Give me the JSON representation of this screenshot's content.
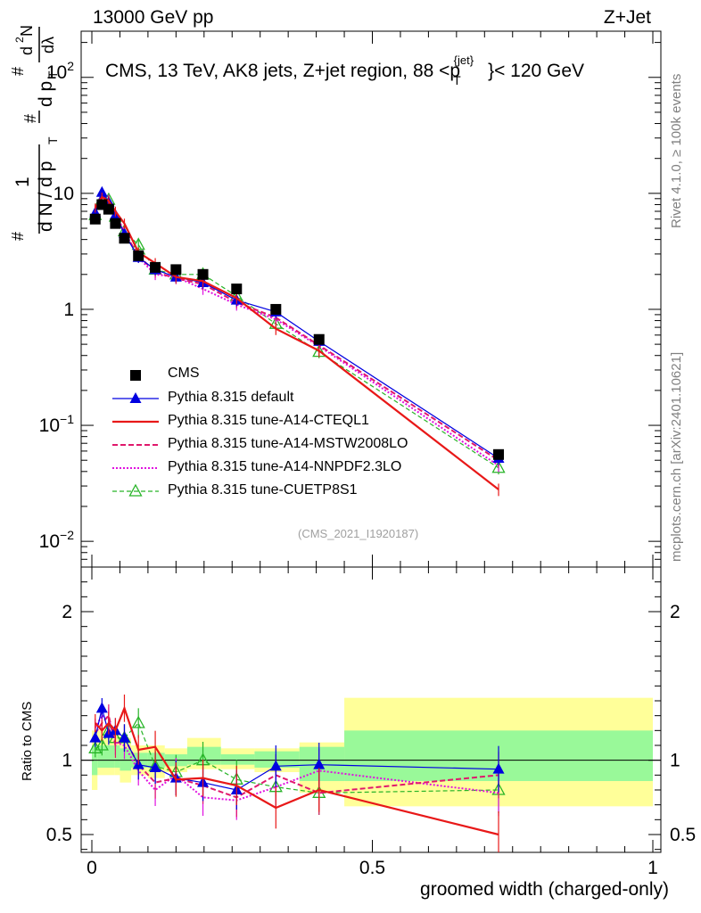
{
  "header": {
    "left": "13000 GeV pp",
    "right": "Z+Jet"
  },
  "main_title": "CMS, 13 TeV, AK8 jets, Z+jet region, 88 <p",
  "main_title_sup": "{jet}",
  "main_title_sub": "T",
  "main_title_tail": "}< 120 GeV",
  "side_labels": {
    "rivet": "Rivet 4.1.0, ≥ 100k events",
    "mcplots": "mcplots.cern.ch [arXiv:2401.10621]"
  },
  "analysis_id": "(CMS_2021_I1920187)",
  "ylabel_top": "1/N dN/dp_T d²N/dp_T dλ",
  "ylabel_bottom": "Ratio to CMS",
  "xlabel": "groomed width (charged-only)",
  "colors": {
    "data": "#000000",
    "default": "#0000e0",
    "cteql1": "#e81818",
    "mstw": "#e0186c",
    "nnpdf": "#e010e0",
    "cuetp8s1": "#28b428",
    "band_inner": "#99f999",
    "band_outer": "#ffff99"
  },
  "chart_data": {
    "type": "line",
    "x_range": [
      0,
      1
    ],
    "x_ticks": [
      "0",
      "0.5",
      "1"
    ],
    "x_tick_values": [
      0,
      0.5,
      1
    ],
    "top_panel": {
      "yscale": "log",
      "y_range": [
        0.006,
        250
      ],
      "y_tick_labels": [
        "10",
        "1",
        "10^-1",
        "10^-2"
      ],
      "y_tick_values": [
        10,
        1,
        0.1,
        0.01
      ],
      "y_tick_label_102": "10^2"
    },
    "bottom_panel": {
      "y_range": [
        0.38,
        2.3
      ],
      "y_ticks": [
        "0.5",
        "1",
        "2"
      ],
      "y_tick_values": [
        0.5,
        1,
        2
      ],
      "bands": [
        {
          "x0": 0.0,
          "x1": 0.01,
          "inner": [
            0.9,
            1.1
          ],
          "outer": [
            0.8,
            1.2
          ]
        },
        {
          "x0": 0.01,
          "x1": 0.04,
          "inner": [
            0.95,
            1.1
          ],
          "outer": [
            0.9,
            1.2
          ]
        },
        {
          "x0": 0.04,
          "x1": 0.05,
          "inner": [
            0.95,
            1.1
          ],
          "outer": [
            0.9,
            1.17
          ]
        },
        {
          "x0": 0.05,
          "x1": 0.07,
          "inner": [
            0.93,
            1.08
          ],
          "outer": [
            0.85,
            1.15
          ]
        },
        {
          "x0": 0.07,
          "x1": 0.1,
          "inner": [
            0.95,
            1.05
          ],
          "outer": [
            0.9,
            1.1
          ]
        },
        {
          "x0": 0.1,
          "x1": 0.13,
          "inner": [
            0.95,
            1.05
          ],
          "outer": [
            0.88,
            1.1
          ]
        },
        {
          "x0": 0.13,
          "x1": 0.17,
          "inner": [
            0.96,
            1.04
          ],
          "outer": [
            0.92,
            1.08
          ]
        },
        {
          "x0": 0.17,
          "x1": 0.23,
          "inner": [
            0.97,
            1.09
          ],
          "outer": [
            0.94,
            1.15
          ]
        },
        {
          "x0": 0.23,
          "x1": 0.29,
          "inner": [
            0.97,
            1.04
          ],
          "outer": [
            0.94,
            1.08
          ]
        },
        {
          "x0": 0.29,
          "x1": 0.37,
          "inner": [
            0.95,
            1.06
          ],
          "outer": [
            0.92,
            1.08
          ]
        },
        {
          "x0": 0.37,
          "x1": 0.45,
          "inner": [
            0.86,
            1.09
          ],
          "outer": [
            0.78,
            1.12
          ]
        },
        {
          "x0": 0.45,
          "x1": 1.0,
          "inner": [
            0.86,
            1.2
          ],
          "outer": [
            0.69,
            1.42
          ]
        }
      ]
    },
    "series": [
      {
        "name": "CMS",
        "key": "data",
        "marker": "square",
        "x": [
          0.006,
          0.018,
          0.03,
          0.042,
          0.058,
          0.083,
          0.113,
          0.15,
          0.198,
          0.258,
          0.328,
          0.405,
          0.725
        ],
        "y": [
          6.0,
          8.0,
          7.3,
          5.5,
          4.1,
          2.9,
          2.3,
          2.2,
          2.0,
          1.5,
          1.0,
          0.55,
          0.056
        ],
        "ratio": [
          1,
          1,
          1,
          1,
          1,
          1,
          1,
          1,
          1,
          1,
          1,
          1,
          1
        ]
      },
      {
        "name": "Pythia 8.315 default",
        "key": "default",
        "marker": "triangle",
        "x": [
          0.006,
          0.018,
          0.03,
          0.042,
          0.058,
          0.083,
          0.113,
          0.15,
          0.198,
          0.258,
          0.328,
          0.405,
          0.725
        ],
        "y": [
          6.8,
          10.2,
          8.4,
          6.5,
          4.5,
          2.8,
          2.2,
          1.9,
          1.7,
          1.2,
          0.95,
          0.53,
          0.052
        ],
        "ratio": [
          1.15,
          1.35,
          1.18,
          1.2,
          1.15,
          0.97,
          0.95,
          0.88,
          0.85,
          0.8,
          0.96,
          0.97,
          0.94
        ]
      },
      {
        "name": "Pythia 8.315 tune-A14-CTEQL1",
        "key": "cteql1",
        "marker": "none",
        "x": [
          0.006,
          0.018,
          0.03,
          0.042,
          0.058,
          0.083,
          0.113,
          0.15,
          0.198,
          0.258,
          0.328,
          0.405,
          0.725
        ],
        "y": [
          7.5,
          9.3,
          8.6,
          7.0,
          5.5,
          3.1,
          2.5,
          1.9,
          1.75,
          1.25,
          0.68,
          0.44,
          0.028
        ],
        "ratio": [
          1.25,
          1.2,
          1.25,
          1.2,
          1.35,
          1.07,
          1.09,
          0.87,
          0.88,
          0.83,
          0.68,
          0.8,
          0.5
        ]
      },
      {
        "name": "Pythia 8.315 tune-A14-MSTW2008LO",
        "key": "mstw",
        "marker": "none",
        "x": [
          0.006,
          0.018,
          0.03,
          0.042,
          0.058,
          0.083,
          0.113,
          0.15,
          0.198,
          0.258,
          0.328,
          0.405,
          0.725
        ],
        "y": [
          7.1,
          9.6,
          8.7,
          6.4,
          4.6,
          2.9,
          2.1,
          1.85,
          1.65,
          1.15,
          0.85,
          0.49,
          0.05
        ],
        "ratio": [
          1.18,
          1.25,
          1.3,
          1.1,
          1.15,
          0.97,
          0.85,
          0.88,
          0.83,
          0.75,
          0.9,
          0.78,
          0.9
        ]
      },
      {
        "name": "Pythia 8.315 tune-A14-NNPDF2.3LO",
        "key": "nnpdf",
        "marker": "none",
        "x": [
          0.006,
          0.018,
          0.03,
          0.042,
          0.058,
          0.083,
          0.113,
          0.15,
          0.198,
          0.258,
          0.328,
          0.405,
          0.725
        ],
        "y": [
          7.3,
          10.0,
          8.9,
          6.6,
          4.7,
          2.8,
          2.0,
          1.9,
          1.5,
          1.1,
          0.82,
          0.48,
          0.045
        ],
        "ratio": [
          1.22,
          1.3,
          1.28,
          1.12,
          1.1,
          0.93,
          0.8,
          0.9,
          0.75,
          0.73,
          0.82,
          0.93,
          0.78
        ]
      },
      {
        "name": "Pythia 8.315 tune-CUETP8S1",
        "key": "cuetp8s1",
        "marker": "triangle-open",
        "x": [
          0.006,
          0.018,
          0.03,
          0.042,
          0.058,
          0.083,
          0.113,
          0.15,
          0.198,
          0.258,
          0.328,
          0.405,
          0.725
        ],
        "y": [
          6.5,
          8.8,
          8.8,
          6.3,
          4.7,
          3.6,
          2.2,
          2.0,
          2.0,
          1.3,
          0.75,
          0.43,
          0.043
        ],
        "ratio": [
          1.08,
          1.1,
          1.2,
          1.15,
          1.15,
          1.25,
          0.96,
          0.92,
          1.0,
          0.87,
          0.82,
          0.78,
          0.8
        ]
      }
    ]
  }
}
